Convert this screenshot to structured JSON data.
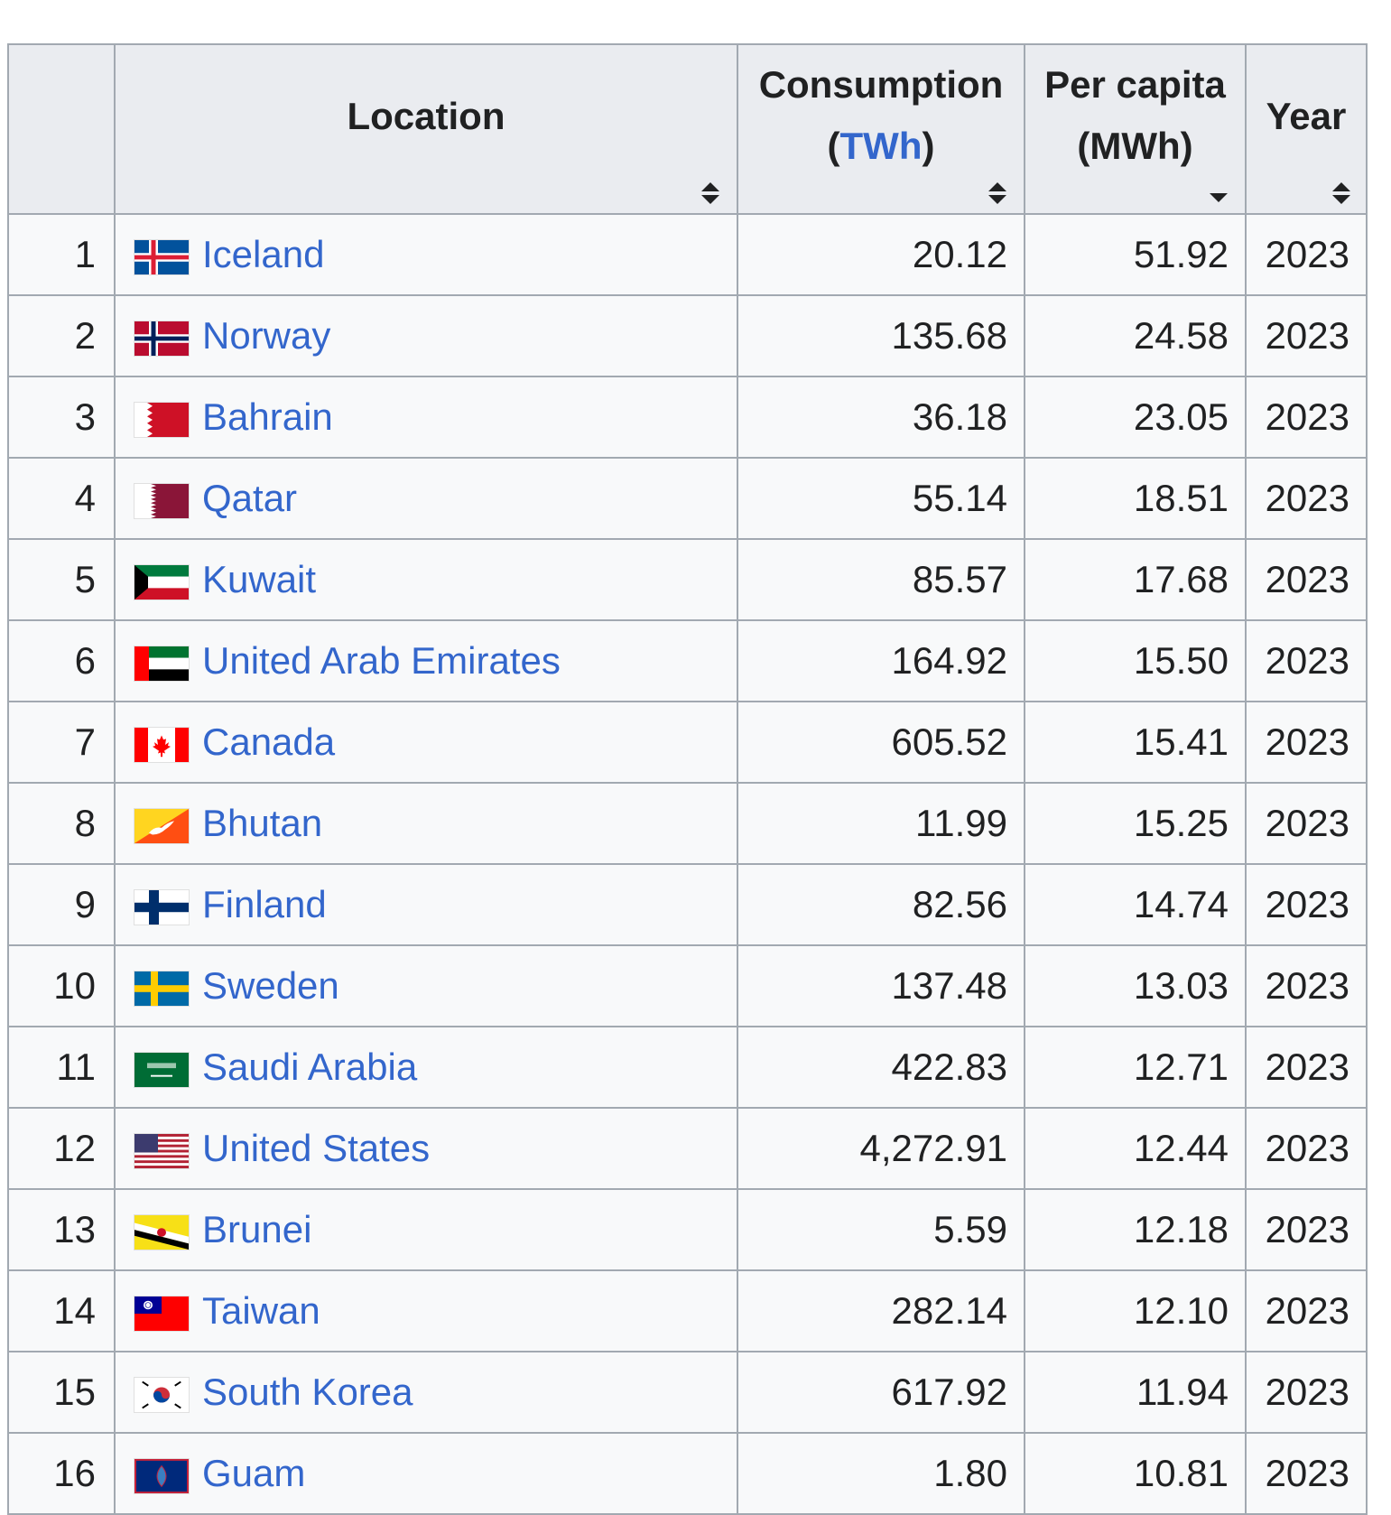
{
  "table": {
    "headers": {
      "rank": "",
      "location": "Location",
      "consumption_title": "Consumption",
      "consumption_open": "(",
      "consumption_unit": "TWh",
      "consumption_close": ")",
      "per_capita_title": "Per capita",
      "per_capita_unit": "(MWh)",
      "year": "Year"
    },
    "sort_state": {
      "location": "unsorted",
      "consumption": "unsorted",
      "per_capita": "descending",
      "year": "unsorted"
    },
    "rows": [
      {
        "rank": "1",
        "location": "Iceland",
        "flag": "flag-iceland",
        "consumption": "20.12",
        "per_capita": "51.92",
        "year": "2023"
      },
      {
        "rank": "2",
        "location": "Norway",
        "flag": "flag-norway",
        "consumption": "135.68",
        "per_capita": "24.58",
        "year": "2023"
      },
      {
        "rank": "3",
        "location": "Bahrain",
        "flag": "flag-bahrain",
        "consumption": "36.18",
        "per_capita": "23.05",
        "year": "2023"
      },
      {
        "rank": "4",
        "location": "Qatar",
        "flag": "flag-qatar",
        "consumption": "55.14",
        "per_capita": "18.51",
        "year": "2023"
      },
      {
        "rank": "5",
        "location": "Kuwait",
        "flag": "flag-kuwait",
        "consumption": "85.57",
        "per_capita": "17.68",
        "year": "2023"
      },
      {
        "rank": "6",
        "location": "United Arab Emirates",
        "flag": "flag-uae",
        "consumption": "164.92",
        "per_capita": "15.50",
        "year": "2023"
      },
      {
        "rank": "7",
        "location": "Canada",
        "flag": "flag-canada",
        "consumption": "605.52",
        "per_capita": "15.41",
        "year": "2023"
      },
      {
        "rank": "8",
        "location": "Bhutan",
        "flag": "flag-bhutan",
        "consumption": "11.99",
        "per_capita": "15.25",
        "year": "2023"
      },
      {
        "rank": "9",
        "location": "Finland",
        "flag": "flag-finland",
        "consumption": "82.56",
        "per_capita": "14.74",
        "year": "2023"
      },
      {
        "rank": "10",
        "location": "Sweden",
        "flag": "flag-sweden",
        "consumption": "137.48",
        "per_capita": "13.03",
        "year": "2023"
      },
      {
        "rank": "11",
        "location": "Saudi Arabia",
        "flag": "flag-saudi-arabia",
        "consumption": "422.83",
        "per_capita": "12.71",
        "year": "2023"
      },
      {
        "rank": "12",
        "location": "United States",
        "flag": "flag-united-states",
        "consumption": "4,272.91",
        "per_capita": "12.44",
        "year": "2023"
      },
      {
        "rank": "13",
        "location": "Brunei",
        "flag": "flag-brunei",
        "consumption": "5.59",
        "per_capita": "12.18",
        "year": "2023"
      },
      {
        "rank": "14",
        "location": "Taiwan",
        "flag": "flag-taiwan",
        "consumption": "282.14",
        "per_capita": "12.10",
        "year": "2023"
      },
      {
        "rank": "15",
        "location": "South Korea",
        "flag": "flag-south-korea",
        "consumption": "617.92",
        "per_capita": "11.94",
        "year": "2023"
      },
      {
        "rank": "16",
        "location": "Guam",
        "flag": "flag-guam",
        "consumption": "1.80",
        "per_capita": "10.81",
        "year": "2023"
      }
    ]
  },
  "colors": {
    "link": "#3366cc",
    "header_bg": "#eaecf0",
    "row_bg": "#f8f9fa",
    "border": "#a2a9b1",
    "text": "#202122"
  }
}
